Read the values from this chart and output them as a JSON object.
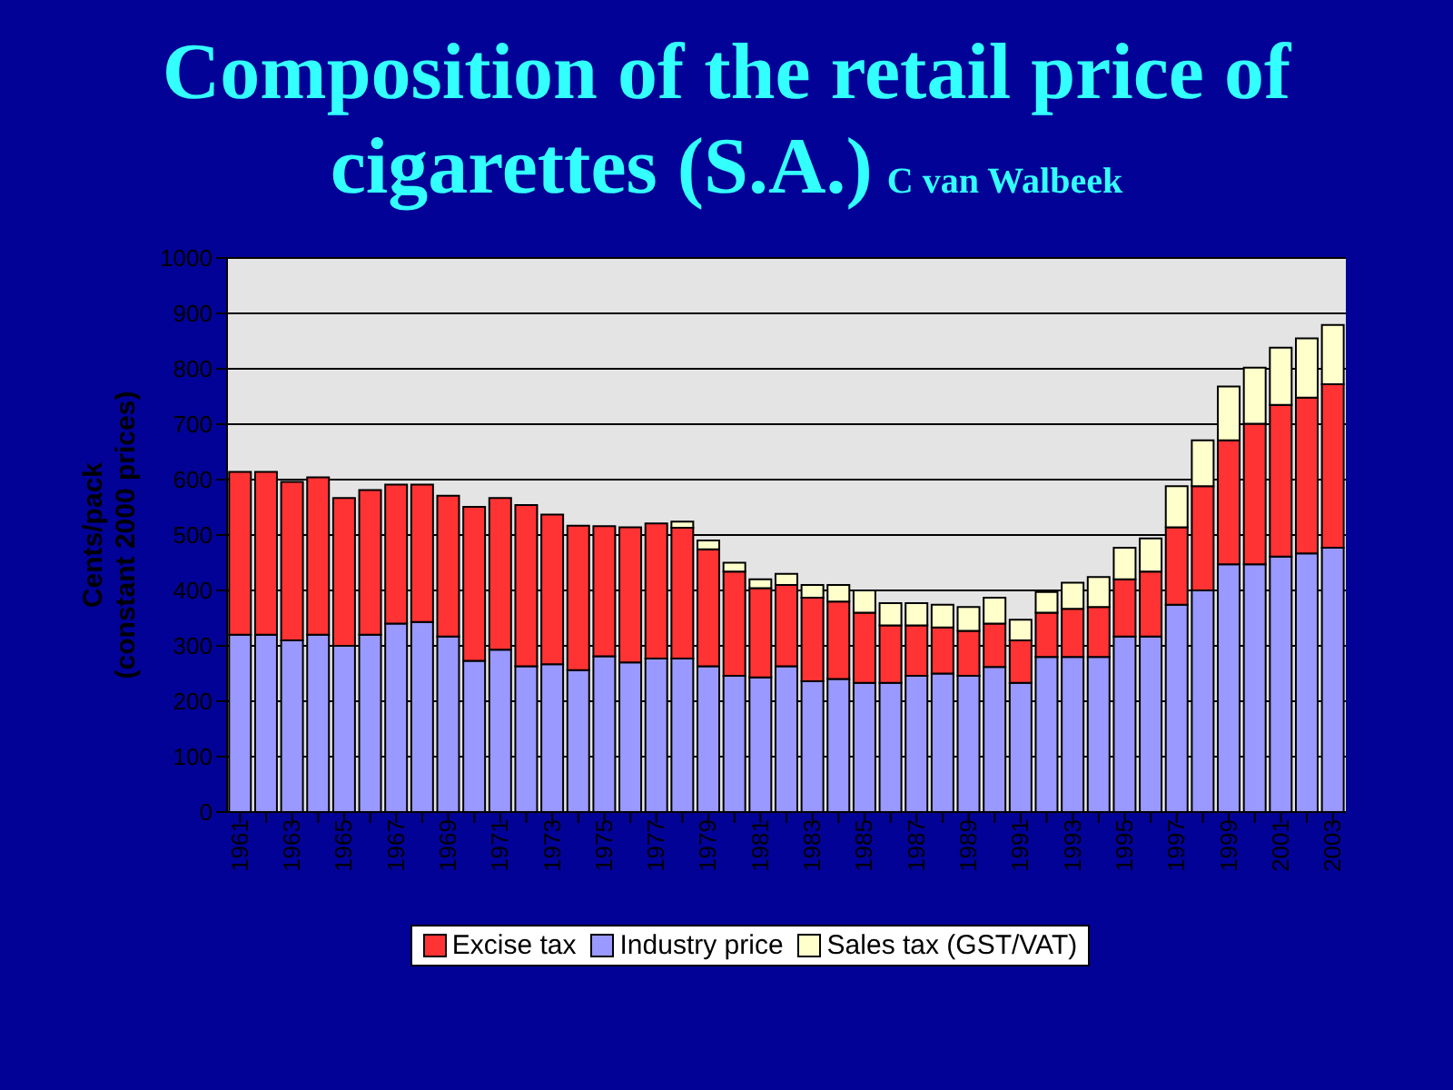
{
  "chart_data": {
    "type": "bar",
    "title": "Composition of the retail price of cigarettes (S.A.)",
    "subtitle": "C van Walbeek",
    "ylabel": "Cents/pack (constant 2000 prices)",
    "categories": [
      "1961",
      null,
      "1963",
      null,
      "1965",
      null,
      "1967",
      null,
      "1969",
      null,
      "1971",
      null,
      "1973",
      null,
      "1975",
      null,
      "1977",
      null,
      "1979",
      null,
      "1981",
      null,
      "1983",
      null,
      "1985",
      null,
      "1987",
      null,
      "1989",
      null,
      "1991",
      null,
      "1993",
      null,
      "1995",
      null,
      "1997",
      null,
      "1999",
      null,
      "2001",
      null,
      "2003"
    ],
    "stacked": true,
    "ylim": [
      0,
      1000
    ],
    "yticks": [
      0,
      100,
      200,
      300,
      400,
      500,
      600,
      700,
      800,
      900,
      1000
    ],
    "grid": "y",
    "legend": "bottom",
    "series": [
      {
        "name": "Industry price",
        "color": "#9999ff",
        "values": [
          320,
          320,
          310,
          320,
          300,
          320,
          340,
          343,
          317,
          273,
          293,
          263,
          267,
          256,
          281,
          270,
          277,
          277,
          263,
          246,
          243,
          263,
          236,
          240,
          233,
          233,
          246,
          250,
          246,
          262,
          233,
          280,
          280,
          280,
          317,
          317,
          374,
          400,
          447,
          447,
          461,
          467,
          477
        ]
      },
      {
        "name": "Excise tax",
        "color": "#ff3333",
        "values": [
          294,
          294,
          286,
          284,
          267,
          261,
          251,
          248,
          254,
          278,
          274,
          291,
          270,
          261,
          235,
          244,
          244,
          236,
          211,
          188,
          161,
          147,
          151,
          140,
          127,
          104,
          91,
          83,
          81,
          78,
          77,
          80,
          87,
          90,
          103,
          117,
          140,
          188,
          224,
          254,
          274,
          281,
          295
        ]
      },
      {
        "name": "Sales tax (GST/VAT)",
        "color": "#ffffcc",
        "values": [
          0,
          0,
          0,
          0,
          0,
          0,
          0,
          0,
          0,
          0,
          0,
          0,
          0,
          0,
          0,
          0,
          0,
          11,
          16,
          16,
          16,
          20,
          23,
          30,
          40,
          40,
          40,
          41,
          43,
          47,
          37,
          37,
          47,
          54,
          57,
          60,
          74,
          83,
          97,
          101,
          103,
          107,
          107
        ]
      }
    ]
  }
}
